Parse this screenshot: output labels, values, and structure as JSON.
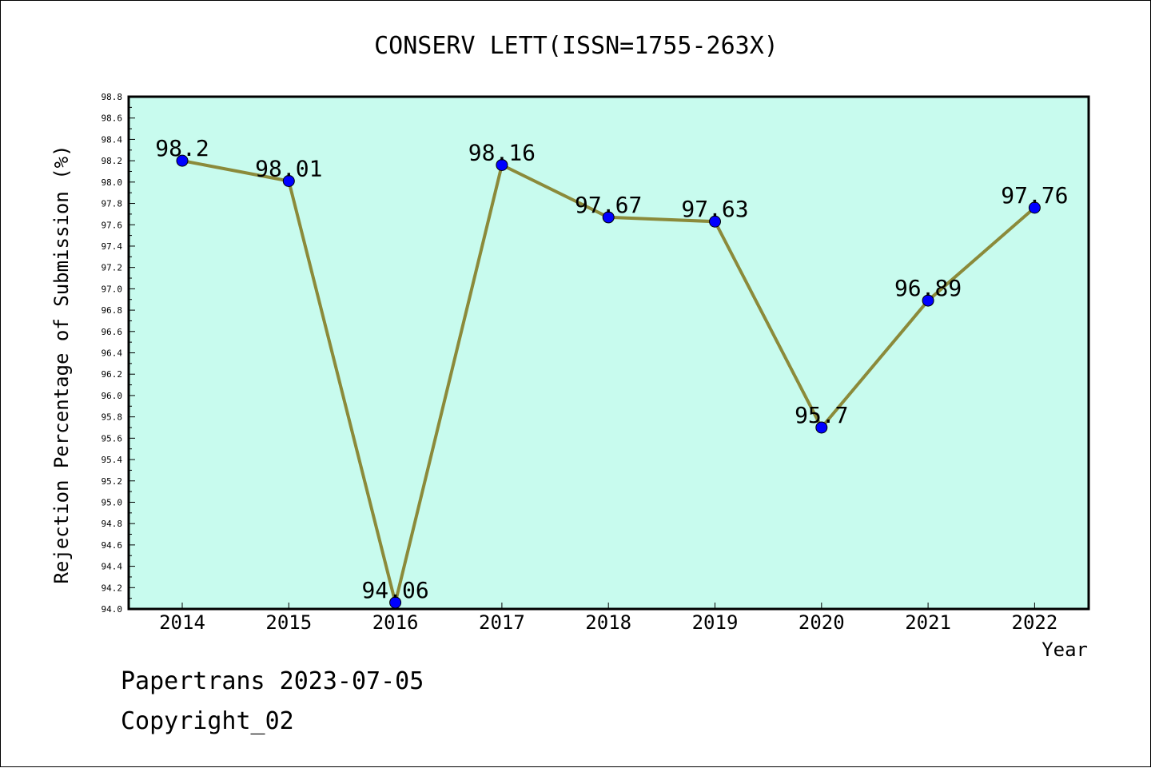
{
  "chart_data": {
    "type": "line",
    "title": "CONSERV LETT(ISSN=1755-263X)",
    "xlabel": "Year",
    "ylabel": "Rejection Percentage of Submission (%)",
    "categories": [
      "2014",
      "2015",
      "2016",
      "2017",
      "2018",
      "2019",
      "2020",
      "2021",
      "2022"
    ],
    "series": [
      {
        "values": [
          98.2,
          98.01,
          94.06,
          98.16,
          97.67,
          97.63,
          95.7,
          96.89,
          97.76
        ],
        "data_labels": [
          "98.2",
          "98.01",
          "94.06",
          "98.16",
          "97.67",
          "97.63",
          "95.7",
          "96.89",
          "97.76"
        ]
      }
    ],
    "ylim": [
      94.0,
      98.8
    ],
    "ytick_labels": [
      "94.0",
      "94.2",
      "94.4",
      "94.6",
      "94.8",
      "95.0",
      "95.2",
      "95.4",
      "95.6",
      "95.8",
      "96.0",
      "96.2",
      "96.4",
      "96.6",
      "96.8",
      "97.0",
      "97.2",
      "97.4",
      "97.6",
      "97.8",
      "98.0",
      "98.2",
      "98.4",
      "98.6",
      "98.8"
    ],
    "grid": false,
    "colors": {
      "plot_background": "#c8fbee",
      "line": "#8b8a3a",
      "marker": "#0000ff"
    }
  },
  "footer": {
    "line1": "Papertrans 2023-07-05",
    "line2": "Copyright_02"
  }
}
